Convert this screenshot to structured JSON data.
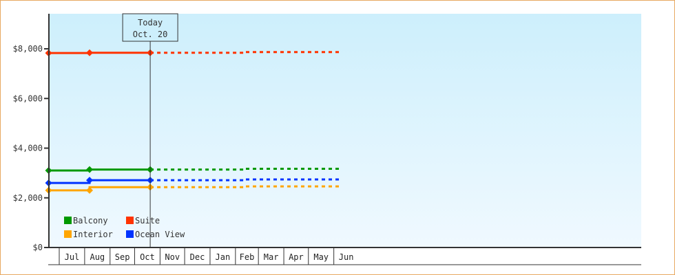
{
  "chart_data": {
    "type": "line",
    "title": "",
    "xlabel": "",
    "ylabel": "",
    "ylim": [
      0,
      9400
    ],
    "yticks": [
      0,
      2000,
      4000,
      6000,
      8000
    ],
    "ytick_labels": [
      "$0",
      "$2,000",
      "$4,000",
      "$6,000",
      "$8,000"
    ],
    "x_month_labels": [
      "Jul",
      "Aug",
      "Sep",
      "Oct",
      "Nov",
      "Dec",
      "Jan",
      "Feb",
      "Mar",
      "Apr",
      "May",
      "Jun"
    ],
    "x_range": [
      "Jun 18",
      "Jun 9"
    ],
    "today": {
      "label": "Today",
      "date_label": "Oct. 20",
      "date": "Oct 20"
    },
    "grid": false,
    "legend_placement": "bottom-left",
    "series": [
      {
        "name": "Balcony",
        "color": "#009900",
        "points": [
          [
            "Jun 18",
            3100
          ],
          [
            "Aug 7",
            3100
          ],
          [
            "Aug 7",
            3140
          ],
          [
            "Oct 20",
            3140
          ]
        ],
        "forecast": [
          [
            "Oct 20",
            3140
          ],
          [
            "Feb 12",
            3140
          ],
          [
            "Feb 12",
            3170
          ],
          [
            "Jun 9",
            3170
          ]
        ],
        "markers": [
          [
            "Jun 18",
            3100
          ],
          [
            "Aug 7",
            3140
          ],
          [
            "Oct 20",
            3140
          ]
        ]
      },
      {
        "name": "Suite",
        "color": "#ff3300",
        "points": [
          [
            "Jun 18",
            7830
          ],
          [
            "Aug 7",
            7830
          ],
          [
            "Aug 7",
            7840
          ],
          [
            "Oct 20",
            7840
          ]
        ],
        "forecast": [
          [
            "Oct 20",
            7840
          ],
          [
            "Feb 12",
            7840
          ],
          [
            "Feb 12",
            7870
          ],
          [
            "Jun 9",
            7870
          ]
        ],
        "markers": [
          [
            "Jun 18",
            7830
          ],
          [
            "Aug 7",
            7840
          ],
          [
            "Oct 20",
            7840
          ]
        ]
      },
      {
        "name": "Interior",
        "color": "#ffa500",
        "points": [
          [
            "Jun 18",
            2300
          ],
          [
            "Aug 7",
            2300
          ],
          [
            "Aug 7",
            2430
          ],
          [
            "Oct 20",
            2430
          ]
        ],
        "forecast": [
          [
            "Oct 20",
            2430
          ],
          [
            "Feb 12",
            2430
          ],
          [
            "Feb 12",
            2460
          ],
          [
            "Jun 9",
            2460
          ]
        ],
        "markers": [
          [
            "Jun 18",
            2300
          ],
          [
            "Aug 7",
            2300
          ],
          [
            "Oct 20",
            2430
          ]
        ]
      },
      {
        "name": "Ocean View",
        "color": "#0033ff",
        "points": [
          [
            "Jun 18",
            2600
          ],
          [
            "Aug 7",
            2600
          ],
          [
            "Aug 7",
            2710
          ],
          [
            "Oct 20",
            2710
          ]
        ],
        "forecast": [
          [
            "Oct 20",
            2710
          ],
          [
            "Feb 12",
            2710
          ],
          [
            "Feb 12",
            2740
          ],
          [
            "Jun 9",
            2740
          ]
        ],
        "markers": [
          [
            "Jun 18",
            2600
          ],
          [
            "Aug 7",
            2710
          ],
          [
            "Oct 20",
            2710
          ]
        ]
      }
    ]
  }
}
